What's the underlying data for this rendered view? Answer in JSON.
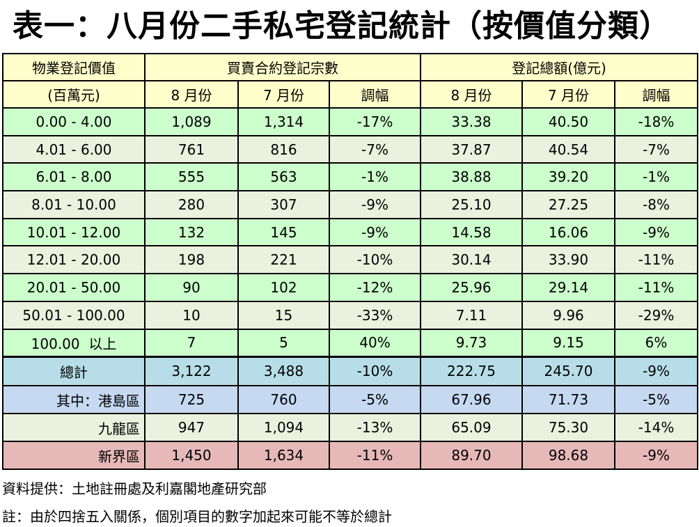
{
  "title": "表一：八月份二手私宅登記統計（按價值分類）",
  "header": {
    "col_property_value": "物業登記價值",
    "col_property_unit": "(百萬元)",
    "group_count": "買賣合約登記宗數",
    "group_amount": "登記總額(億元)",
    "aug": "8 月份",
    "jul": "7 月份",
    "change": "調幅"
  },
  "rows": [
    {
      "range": "0.00 - 4.00",
      "c_aug": "1,089",
      "c_jul": "1,314",
      "c_chg": "-17%",
      "a_aug": "33.38",
      "a_jul": "40.50",
      "a_chg": "-18%"
    },
    {
      "range": "4.01 - 6.00",
      "c_aug": "761",
      "c_jul": "816",
      "c_chg": "-7%",
      "a_aug": "37.87",
      "a_jul": "40.54",
      "a_chg": "-7%"
    },
    {
      "range": "6.01 - 8.00",
      "c_aug": "555",
      "c_jul": "563",
      "c_chg": "-1%",
      "a_aug": "38.88",
      "a_jul": "39.20",
      "a_chg": "-1%"
    },
    {
      "range": "8.01 - 10.00",
      "c_aug": "280",
      "c_jul": "307",
      "c_chg": "-9%",
      "a_aug": "25.10",
      "a_jul": "27.25",
      "a_chg": "-8%"
    },
    {
      "range": "10.01 - 12.00",
      "c_aug": "132",
      "c_jul": "145",
      "c_chg": "-9%",
      "a_aug": "14.58",
      "a_jul": "16.06",
      "a_chg": "-9%"
    },
    {
      "range": "12.01 - 20.00",
      "c_aug": "198",
      "c_jul": "221",
      "c_chg": "-10%",
      "a_aug": "30.14",
      "a_jul": "33.90",
      "a_chg": "-11%"
    },
    {
      "range": "20.01 - 50.00",
      "c_aug": "90",
      "c_jul": "102",
      "c_chg": "-12%",
      "a_aug": "25.96",
      "a_jul": "29.14",
      "a_chg": "-11%"
    },
    {
      "range": "50.01 - 100.00",
      "c_aug": "10",
      "c_jul": "15",
      "c_chg": "-33%",
      "a_aug": "7.11",
      "a_jul": "9.96",
      "a_chg": "-29%"
    },
    {
      "range": "100.00  以上",
      "c_aug": "7",
      "c_jul": "5",
      "c_chg": "40%",
      "a_aug": "9.73",
      "a_jul": "9.15",
      "a_chg": "6%"
    }
  ],
  "total": {
    "label": "總計",
    "c_aug": "3,122",
    "c_jul": "3,488",
    "c_chg": "-10%",
    "a_aug": "222.75",
    "a_jul": "245.70",
    "a_chg": "-9%"
  },
  "regions": [
    {
      "label": "其中：港島區",
      "c_aug": "725",
      "c_jul": "760",
      "c_chg": "-5%",
      "a_aug": "67.96",
      "a_jul": "71.73",
      "a_chg": "-5%"
    },
    {
      "label": "九龍區",
      "c_aug": "947",
      "c_jul": "1,094",
      "c_chg": "-13%",
      "a_aug": "65.09",
      "a_jul": "75.30",
      "a_chg": "-14%"
    },
    {
      "label": "新界區",
      "c_aug": "1,450",
      "c_jul": "1,634",
      "c_chg": "-11%",
      "a_aug": "89.70",
      "a_jul": "98.68",
      "a_chg": "-9%"
    }
  ],
  "source": "資料提供：土地註冊處及利嘉閣地產研究部",
  "footnote": "註：由於四捨五入關係，個別項目的數字加起來可能不等於總計",
  "colors": {
    "header": "#ffffcc",
    "row_green": "#ccffcc",
    "row_light": "#ebf1de",
    "total": "#b7dee8",
    "hk": "#c5d9f1",
    "nt": "#e6b9b8"
  }
}
